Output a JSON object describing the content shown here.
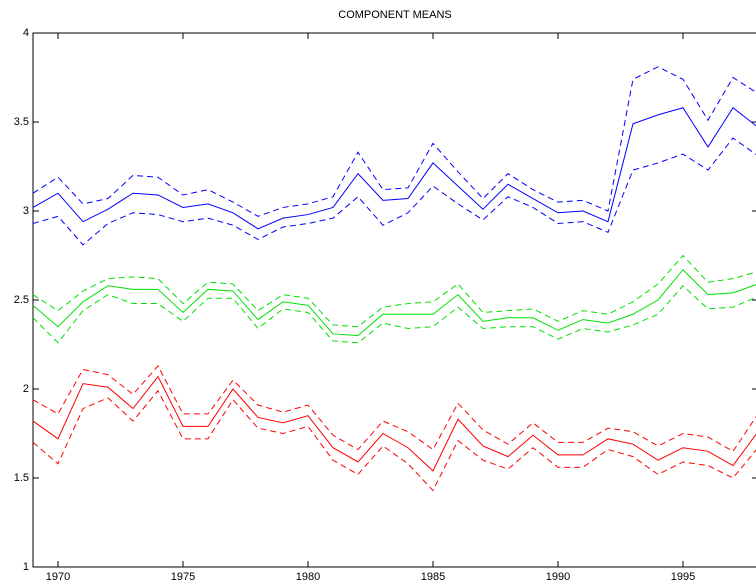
{
  "chart_data": {
    "type": "line",
    "title": "COMPONENT MEANS",
    "x": [
      1969,
      1970,
      1971,
      1972,
      1973,
      1974,
      1975,
      1976,
      1977,
      1978,
      1979,
      1980,
      1981,
      1982,
      1983,
      1984,
      1985,
      1986,
      1987,
      1988,
      1989,
      1990,
      1991,
      1992,
      1993,
      1994,
      1995,
      1996,
      1997,
      1998
    ],
    "xlim": [
      1969,
      1998
    ],
    "xticks": [
      1970,
      1975,
      1980,
      1985,
      1990,
      1995
    ],
    "ylim": [
      1,
      4
    ],
    "yticks": [
      1,
      1.5,
      2,
      2.5,
      3,
      3.5,
      4
    ],
    "grid": false,
    "series": [
      {
        "color": "#0000ff",
        "style": "solid",
        "values": [
          3.02,
          3.1,
          2.94,
          3.01,
          3.1,
          3.09,
          3.02,
          3.04,
          2.99,
          2.9,
          2.96,
          2.98,
          3.02,
          3.21,
          3.06,
          3.07,
          3.27,
          3.14,
          3.01,
          3.15,
          3.07,
          2.99,
          3.0,
          2.94,
          3.49,
          3.54,
          3.58,
          3.36,
          3.58,
          3.47
        ]
      },
      {
        "color": "#0000ff",
        "style": "dashed",
        "values": [
          3.1,
          3.19,
          3.04,
          3.07,
          3.2,
          3.19,
          3.09,
          3.12,
          3.05,
          2.97,
          3.02,
          3.04,
          3.08,
          3.33,
          3.12,
          3.13,
          3.38,
          3.22,
          3.07,
          3.21,
          3.12,
          3.05,
          3.06,
          3.0,
          3.74,
          3.81,
          3.74,
          3.51,
          3.75,
          3.66
        ]
      },
      {
        "color": "#0000ff",
        "style": "dashed",
        "values": [
          2.93,
          2.97,
          2.81,
          2.93,
          2.99,
          2.98,
          2.94,
          2.96,
          2.92,
          2.84,
          2.91,
          2.93,
          2.96,
          3.08,
          2.92,
          2.99,
          3.14,
          3.04,
          2.95,
          3.08,
          3.02,
          2.93,
          2.94,
          2.88,
          3.23,
          3.27,
          3.32,
          3.23,
          3.41,
          3.31
        ]
      },
      {
        "color": "#00e000",
        "style": "solid",
        "values": [
          2.47,
          2.35,
          2.49,
          2.58,
          2.56,
          2.56,
          2.43,
          2.56,
          2.55,
          2.39,
          2.49,
          2.47,
          2.31,
          2.3,
          2.42,
          2.42,
          2.42,
          2.53,
          2.38,
          2.4,
          2.4,
          2.33,
          2.39,
          2.37,
          2.42,
          2.5,
          2.67,
          2.53,
          2.54,
          2.59
        ]
      },
      {
        "color": "#00e000",
        "style": "dashed",
        "values": [
          2.53,
          2.44,
          2.55,
          2.62,
          2.63,
          2.62,
          2.48,
          2.6,
          2.59,
          2.44,
          2.53,
          2.51,
          2.36,
          2.35,
          2.46,
          2.48,
          2.49,
          2.59,
          2.43,
          2.44,
          2.45,
          2.38,
          2.44,
          2.42,
          2.49,
          2.59,
          2.75,
          2.6,
          2.62,
          2.66
        ]
      },
      {
        "color": "#00e000",
        "style": "dashed",
        "values": [
          2.4,
          2.26,
          2.44,
          2.53,
          2.48,
          2.48,
          2.38,
          2.51,
          2.51,
          2.34,
          2.45,
          2.43,
          2.27,
          2.26,
          2.37,
          2.34,
          2.35,
          2.46,
          2.34,
          2.35,
          2.35,
          2.28,
          2.34,
          2.32,
          2.36,
          2.42,
          2.58,
          2.45,
          2.46,
          2.52
        ]
      },
      {
        "color": "#ff0000",
        "style": "solid",
        "values": [
          1.82,
          1.72,
          2.03,
          2.01,
          1.89,
          2.07,
          1.79,
          1.79,
          2.0,
          1.84,
          1.81,
          1.85,
          1.67,
          1.59,
          1.75,
          1.67,
          1.54,
          1.83,
          1.68,
          1.62,
          1.74,
          1.63,
          1.63,
          1.72,
          1.69,
          1.6,
          1.67,
          1.65,
          1.57,
          1.76
        ]
      },
      {
        "color": "#ff0000",
        "style": "dashed",
        "values": [
          1.94,
          1.86,
          2.11,
          2.08,
          1.97,
          2.13,
          1.86,
          1.86,
          2.05,
          1.91,
          1.87,
          1.91,
          1.74,
          1.66,
          1.82,
          1.76,
          1.66,
          1.92,
          1.77,
          1.69,
          1.81,
          1.7,
          1.7,
          1.78,
          1.76,
          1.68,
          1.75,
          1.73,
          1.65,
          1.86
        ]
      },
      {
        "color": "#ff0000",
        "style": "dashed",
        "values": [
          1.7,
          1.58,
          1.89,
          1.95,
          1.82,
          1.99,
          1.72,
          1.72,
          1.94,
          1.78,
          1.75,
          1.79,
          1.6,
          1.52,
          1.68,
          1.58,
          1.43,
          1.71,
          1.6,
          1.55,
          1.67,
          1.56,
          1.56,
          1.66,
          1.62,
          1.52,
          1.59,
          1.57,
          1.5,
          1.67
        ]
      }
    ]
  }
}
